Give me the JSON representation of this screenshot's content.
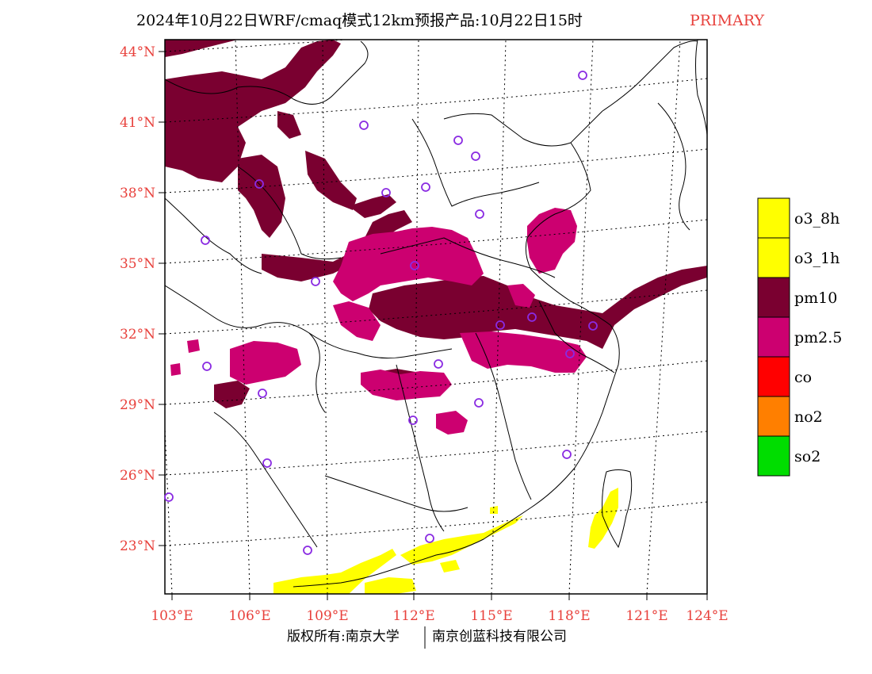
{
  "title": {
    "main": "2024年10月22日WRF/cmaq模式12km预报产品:10月22日15时",
    "tag": "PRIMARY"
  },
  "colors": {
    "label": "#e8413c",
    "o3_8h": "#ffff00",
    "o3_1h": "#ffff00",
    "pm10": "#7a0030",
    "pm25": "#cc0070",
    "co": "#ff0000",
    "no2": "#ff7f00",
    "so2": "#00dd00",
    "city_marker": "#8a2be2"
  },
  "axes": {
    "lat_labels": [
      "44°N",
      "41°N",
      "38°N",
      "35°N",
      "32°N",
      "29°N",
      "26°N",
      "23°N"
    ],
    "lon_labels": [
      "103°E",
      "106°E",
      "109°E",
      "112°E",
      "115°E",
      "118°E",
      "121°E",
      "124°E"
    ]
  },
  "legend": [
    {
      "label": "o3_8h",
      "color_key": "o3_8h"
    },
    {
      "label": "o3_1h",
      "color_key": "o3_1h"
    },
    {
      "label": "pm10",
      "color_key": "pm10"
    },
    {
      "label": "pm2.5",
      "color_key": "pm25"
    },
    {
      "label": "co",
      "color_key": "co"
    },
    {
      "label": "no2",
      "color_key": "no2"
    },
    {
      "label": "so2",
      "color_key": "so2"
    }
  ],
  "footer": {
    "left": "版权所有:南京大学",
    "right": "南京创蓝科技有限公司"
  }
}
